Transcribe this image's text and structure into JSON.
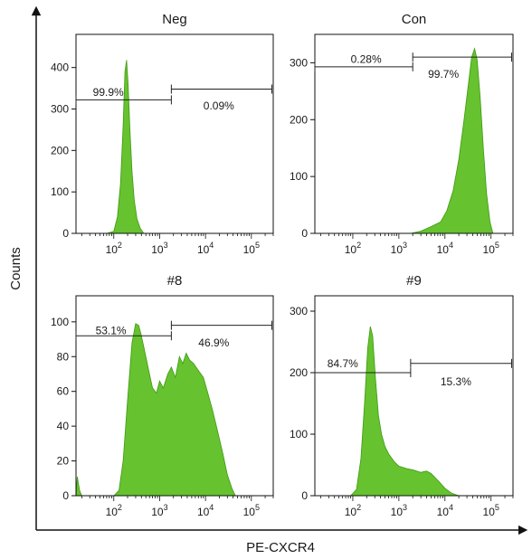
{
  "figure": {
    "xlabel": "PE-CXCR4",
    "ylabel": "Counts"
  },
  "colors": {
    "histogram_fill": "#66c22e",
    "histogram_edge": "#3f9a14",
    "axis": "#111111",
    "gate": "#222222"
  },
  "chart_data": [
    {
      "type": "area",
      "title": "Neg",
      "x_scale": "log",
      "xlim": [
        15,
        300000
      ],
      "ylim": [
        0,
        480
      ],
      "yticks": [
        0,
        100,
        200,
        300,
        400
      ],
      "xticks": [
        {
          "value": 100,
          "base": "10",
          "exp": "2"
        },
        {
          "value": 1000,
          "base": "10",
          "exp": "3"
        },
        {
          "value": 10000,
          "base": "10",
          "exp": "4"
        },
        {
          "value": 100000,
          "base": "10",
          "exp": "5"
        }
      ],
      "series": [
        {
          "points": [
            [
              15,
              0
            ],
            [
              70,
              0
            ],
            [
              100,
              5
            ],
            [
              120,
              40
            ],
            [
              140,
              120
            ],
            [
              160,
              260
            ],
            [
              175,
              390
            ],
            [
              190,
              418
            ],
            [
              205,
              360
            ],
            [
              225,
              250
            ],
            [
              250,
              150
            ],
            [
              280,
              80
            ],
            [
              320,
              35
            ],
            [
              380,
              12
            ],
            [
              450,
              0
            ],
            [
              300000,
              0
            ]
          ]
        }
      ],
      "gates": [
        {
          "x1": 15,
          "x2": 1800,
          "y": 322,
          "label": "99.9%",
          "label_x": 35,
          "label_y": 340
        },
        {
          "x1": 1800,
          "x2": 280000,
          "y": 348,
          "label": "0.09%",
          "label_x": 9000,
          "label_y": 308
        }
      ]
    },
    {
      "type": "area",
      "title": "Con",
      "x_scale": "log",
      "xlim": [
        15,
        300000
      ],
      "ylim": [
        0,
        350
      ],
      "yticks": [
        0,
        100,
        200,
        300
      ],
      "xticks": [
        {
          "value": 100,
          "base": "10",
          "exp": "2"
        },
        {
          "value": 1000,
          "base": "10",
          "exp": "3"
        },
        {
          "value": 10000,
          "base": "10",
          "exp": "4"
        },
        {
          "value": 100000,
          "base": "10",
          "exp": "5"
        }
      ],
      "series": [
        {
          "points": [
            [
              15,
              0
            ],
            [
              1800,
              0
            ],
            [
              3000,
              4
            ],
            [
              5000,
              12
            ],
            [
              8000,
              20
            ],
            [
              11000,
              40
            ],
            [
              15000,
              75
            ],
            [
              20000,
              130
            ],
            [
              26000,
              200
            ],
            [
              32000,
              260
            ],
            [
              38000,
              310
            ],
            [
              44000,
              325
            ],
            [
              50000,
              305
            ],
            [
              58000,
              240
            ],
            [
              68000,
              150
            ],
            [
              80000,
              70
            ],
            [
              95000,
              20
            ],
            [
              110000,
              0
            ],
            [
              300000,
              0
            ]
          ]
        }
      ],
      "gates": [
        {
          "x1": 15,
          "x2": 2000,
          "y": 293,
          "label": "0.28%",
          "label_x": 90,
          "label_y": 306
        },
        {
          "x1": 2000,
          "x2": 280000,
          "y": 310,
          "label": "99.7%",
          "label_x": 4300,
          "label_y": 280
        }
      ]
    },
    {
      "type": "area",
      "title": "#8",
      "x_scale": "log",
      "xlim": [
        15,
        300000
      ],
      "ylim": [
        0,
        115
      ],
      "yticks": [
        0,
        20,
        40,
        60,
        80,
        100
      ],
      "xticks": [
        {
          "value": 100,
          "base": "10",
          "exp": "2"
        },
        {
          "value": 1000,
          "base": "10",
          "exp": "3"
        },
        {
          "value": 10000,
          "base": "10",
          "exp": "4"
        },
        {
          "value": 100000,
          "base": "10",
          "exp": "5"
        }
      ],
      "series": [
        {
          "points": [
            [
              15,
              0
            ],
            [
              16,
              11
            ],
            [
              18,
              3
            ],
            [
              20,
              0
            ],
            [
              100,
              0
            ],
            [
              130,
              3
            ],
            [
              160,
              20
            ],
            [
              200,
              55
            ],
            [
              250,
              88
            ],
            [
              300,
              99
            ],
            [
              350,
              98
            ],
            [
              400,
              92
            ],
            [
              500,
              80
            ],
            [
              600,
              70
            ],
            [
              700,
              62
            ],
            [
              850,
              59
            ],
            [
              1000,
              66
            ],
            [
              1200,
              62
            ],
            [
              1500,
              70
            ],
            [
              1800,
              74
            ],
            [
              2200,
              68
            ],
            [
              2700,
              80
            ],
            [
              3200,
              76
            ],
            [
              3800,
              82
            ],
            [
              4500,
              78
            ],
            [
              5500,
              76
            ],
            [
              7000,
              72
            ],
            [
              9000,
              68
            ],
            [
              11000,
              60
            ],
            [
              14000,
              50
            ],
            [
              18000,
              38
            ],
            [
              24000,
              24
            ],
            [
              30000,
              12
            ],
            [
              38000,
              4
            ],
            [
              45000,
              0
            ],
            [
              300000,
              0
            ]
          ]
        }
      ],
      "gates": [
        {
          "x1": 15,
          "x2": 1800,
          "y": 92,
          "label": "53.1%",
          "label_x": 40,
          "label_y": 95
        },
        {
          "x1": 1800,
          "x2": 280000,
          "y": 98,
          "label": "46.9%",
          "label_x": 7000,
          "label_y": 88
        }
      ]
    },
    {
      "type": "area",
      "title": "#9",
      "x_scale": "log",
      "xlim": [
        15,
        300000
      ],
      "ylim": [
        0,
        325
      ],
      "yticks": [
        0,
        100,
        200,
        300
      ],
      "xticks": [
        {
          "value": 100,
          "base": "10",
          "exp": "2"
        },
        {
          "value": 1000,
          "base": "10",
          "exp": "3"
        },
        {
          "value": 10000,
          "base": "10",
          "exp": "4"
        },
        {
          "value": 100000,
          "base": "10",
          "exp": "5"
        }
      ],
      "series": [
        {
          "points": [
            [
              15,
              0
            ],
            [
              90,
              0
            ],
            [
              120,
              10
            ],
            [
              150,
              60
            ],
            [
              180,
              150
            ],
            [
              210,
              240
            ],
            [
              240,
              275
            ],
            [
              270,
              260
            ],
            [
              310,
              190
            ],
            [
              360,
              130
            ],
            [
              420,
              100
            ],
            [
              500,
              80
            ],
            [
              600,
              68
            ],
            [
              800,
              55
            ],
            [
              1000,
              48
            ],
            [
              1500,
              44
            ],
            [
              2000,
              42
            ],
            [
              3000,
              38
            ],
            [
              4000,
              40
            ],
            [
              5000,
              36
            ],
            [
              7000,
              25
            ],
            [
              10000,
              12
            ],
            [
              14000,
              4
            ],
            [
              20000,
              0
            ],
            [
              300000,
              0
            ]
          ]
        }
      ],
      "gates": [
        {
          "x1": 15,
          "x2": 1800,
          "y": 200,
          "label": "84.7%",
          "label_x": 28,
          "label_y": 215
        },
        {
          "x1": 1800,
          "x2": 280000,
          "y": 215,
          "label": "15.3%",
          "label_x": 8000,
          "label_y": 185
        }
      ]
    }
  ]
}
